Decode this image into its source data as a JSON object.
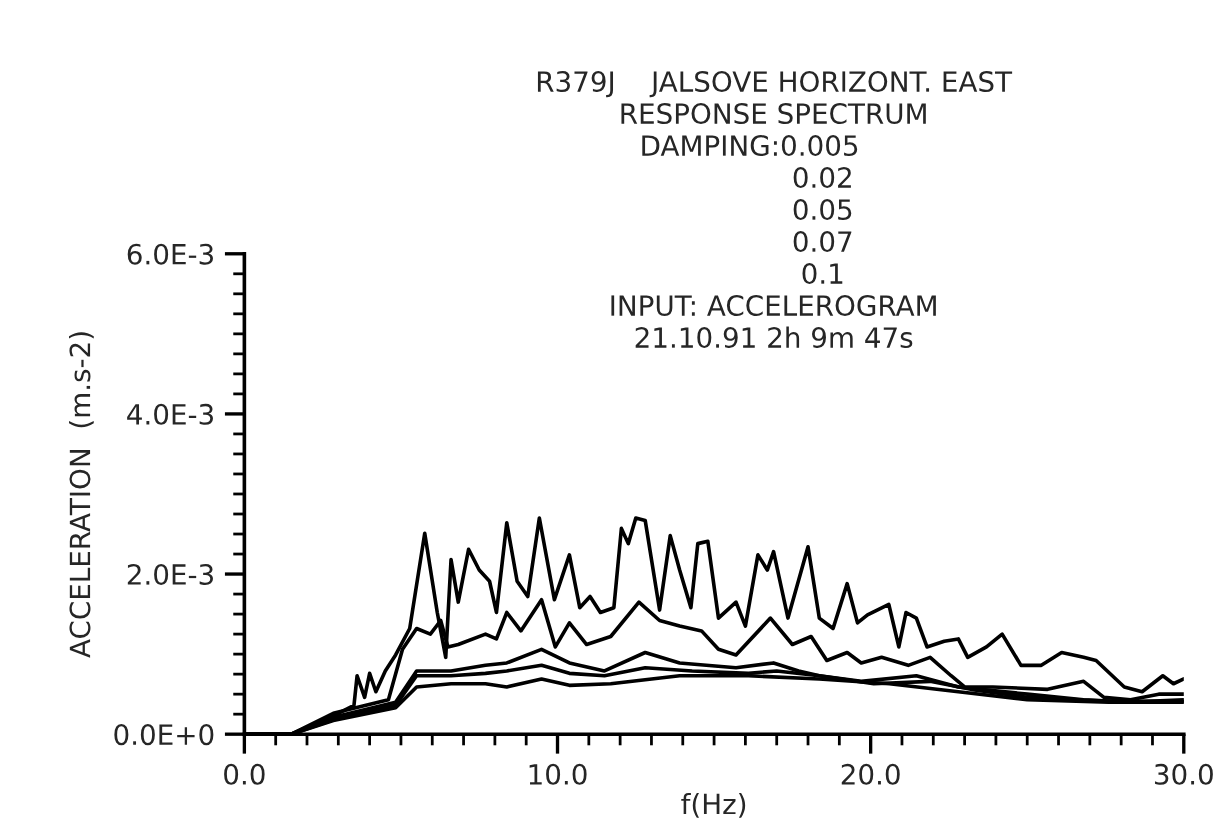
{
  "chart_data": {
    "type": "line",
    "title": "R379J    JALSOVE HORIZONT. EAST",
    "subtitle": "RESPONSE SPECTRUM",
    "annotations": [
      "DAMPING:0.005",
      "0.02",
      "0.05",
      "0.07",
      "0.1",
      "INPUT: ACCELEROGRAM",
      "21.10.91 2h 9m 47s"
    ],
    "xlabel": "f(Hz)",
    "ylabel": "ACCELERATION  (m.s-2)",
    "xlim": [
      0,
      30
    ],
    "xticks": [
      {
        "value": 0,
        "label": "0.0"
      },
      {
        "value": 10,
        "label": "10.0"
      },
      {
        "value": 20,
        "label": "20.0"
      },
      {
        "value": 30,
        "label": "30.0"
      }
    ],
    "ylim": [
      0,
      0.006
    ],
    "yticks": [
      {
        "value": 0,
        "label": "0.0E+0"
      },
      {
        "value": 0.002,
        "label": "2.0E-3"
      },
      {
        "value": 0.004,
        "label": "4.0E-3"
      },
      {
        "value": 0.006,
        "label": "6.0E-3"
      }
    ],
    "legend": false,
    "series": [
      {
        "color": "#000000",
        "x": [
          0,
          1.5,
          2.84,
          3.5,
          3.6,
          3.84,
          4.0,
          4.2,
          4.5,
          4.83,
          5.28,
          5.76,
          6.16,
          6.43,
          6.6,
          6.83,
          7.16,
          7.5,
          7.83,
          8.05,
          8.38,
          8.71,
          9.05,
          9.42,
          9.9,
          10.38,
          10.71,
          11.04,
          11.37,
          11.8,
          12.04,
          12.26,
          12.5,
          12.8,
          13.26,
          13.6,
          13.9,
          14.26,
          14.48,
          14.8,
          15.14,
          15.7,
          16.0,
          16.4,
          16.7,
          16.9,
          17.36,
          18.0,
          18.36,
          18.8,
          19.25,
          19.58,
          19.9,
          20.58,
          20.9,
          21.13,
          21.46,
          21.8,
          22.35,
          22.8,
          23.1,
          23.7,
          24.2,
          24.8,
          25.45,
          26.1,
          26.8,
          27.2,
          28.1,
          28.67,
          29.33,
          29.67,
          30
        ],
        "values": [
          0,
          0,
          0.00023,
          0.00036,
          0.00073,
          0.00046,
          0.00076,
          0.00053,
          0.00079,
          0.00099,
          0.00132,
          0.00251,
          0.00152,
          0.00096,
          0.00218,
          0.00165,
          0.00231,
          0.00205,
          0.00191,
          0.00152,
          0.00264,
          0.00191,
          0.00172,
          0.0027,
          0.00168,
          0.00224,
          0.00158,
          0.00172,
          0.00152,
          0.00158,
          0.00257,
          0.00238,
          0.0027,
          0.00267,
          0.00155,
          0.00248,
          0.00205,
          0.00158,
          0.00238,
          0.00241,
          0.00145,
          0.00165,
          0.00135,
          0.00224,
          0.00205,
          0.00228,
          0.00145,
          0.00234,
          0.00145,
          0.00132,
          0.00188,
          0.00139,
          0.00149,
          0.00162,
          0.00109,
          0.00152,
          0.00145,
          0.00109,
          0.00116,
          0.00119,
          0.00096,
          0.00109,
          0.00125,
          0.00086,
          0.00086,
          0.00102,
          0.00096,
          0.00092,
          0.00059,
          0.00053,
          0.00073,
          0.00063,
          0.00069
        ]
      },
      {
        "color": "#000000",
        "x": [
          0,
          1.5,
          2.84,
          4.6,
          5.05,
          5.5,
          5.94,
          6.27,
          6.5,
          6.83,
          7.7,
          8.05,
          8.38,
          8.83,
          9.49,
          9.93,
          10.38,
          10.93,
          11.7,
          12.6,
          13.26,
          13.9,
          14.6,
          15.14,
          15.7,
          16.8,
          17.5,
          18.1,
          18.6,
          19.25,
          19.7,
          20.35,
          21.2,
          21.9,
          22.57,
          23.0,
          23.9,
          25.65,
          26.8,
          27.45,
          28.3,
          29.2,
          30
        ],
        "values": [
          0,
          0,
          0.00026,
          0.00043,
          0.00106,
          0.00132,
          0.00125,
          0.00142,
          0.00109,
          0.00112,
          0.00125,
          0.00119,
          0.00152,
          0.00129,
          0.00168,
          0.00109,
          0.00139,
          0.00112,
          0.00122,
          0.00165,
          0.00142,
          0.00135,
          0.00129,
          0.00106,
          0.00099,
          0.00145,
          0.00112,
          0.00122,
          0.00092,
          0.00102,
          0.00089,
          0.00096,
          0.00086,
          0.00096,
          0.00073,
          0.00059,
          0.00059,
          0.00056,
          0.00066,
          0.00046,
          0.00043,
          0.0005,
          0.0005
        ]
      },
      {
        "color": "#000000",
        "x": [
          0,
          1.5,
          2.84,
          4.83,
          5.5,
          6.6,
          7.7,
          8.38,
          9.49,
          10.38,
          11.5,
          12.8,
          13.9,
          15.7,
          16.9,
          17.7,
          18.36,
          19.7,
          21.46,
          22.8,
          25.0,
          26.8,
          28.3,
          30
        ],
        "values": [
          0,
          0,
          0.00021,
          0.0004,
          0.00079,
          0.00079,
          0.00086,
          0.00089,
          0.00106,
          0.00089,
          0.00079,
          0.00102,
          0.00089,
          0.00083,
          0.00089,
          0.00079,
          0.00073,
          0.00066,
          0.00073,
          0.00059,
          0.0005,
          0.00043,
          0.0004,
          0.00043
        ]
      },
      {
        "color": "#000000",
        "x": [
          0,
          1.5,
          2.84,
          4.83,
          5.5,
          6.6,
          7.7,
          8.38,
          9.49,
          10.38,
          11.5,
          12.8,
          14.3,
          16.1,
          17.0,
          18.36,
          20.1,
          21.9,
          23.2,
          25.0,
          27.6,
          30
        ],
        "values": [
          0,
          0,
          0.00018,
          0.00036,
          0.00073,
          0.00073,
          0.00076,
          0.00079,
          0.00086,
          0.00076,
          0.00073,
          0.00083,
          0.00079,
          0.00076,
          0.00079,
          0.00073,
          0.00063,
          0.00066,
          0.00056,
          0.00046,
          0.00041,
          0.00041
        ]
      },
      {
        "color": "#000000",
        "x": [
          0,
          1.5,
          2.84,
          4.83,
          5.5,
          6.6,
          7.7,
          8.38,
          9.49,
          10.38,
          11.7,
          13.9,
          16.1,
          18.36,
          20.6,
          22.8,
          25.0,
          27.6,
          30
        ],
        "values": [
          0,
          0,
          0.00017,
          0.00033,
          0.00059,
          0.00063,
          0.00063,
          0.00059,
          0.00069,
          0.00061,
          0.00063,
          0.00073,
          0.00073,
          0.00069,
          0.00063,
          0.00053,
          0.00043,
          0.0004,
          0.0004
        ]
      }
    ]
  }
}
